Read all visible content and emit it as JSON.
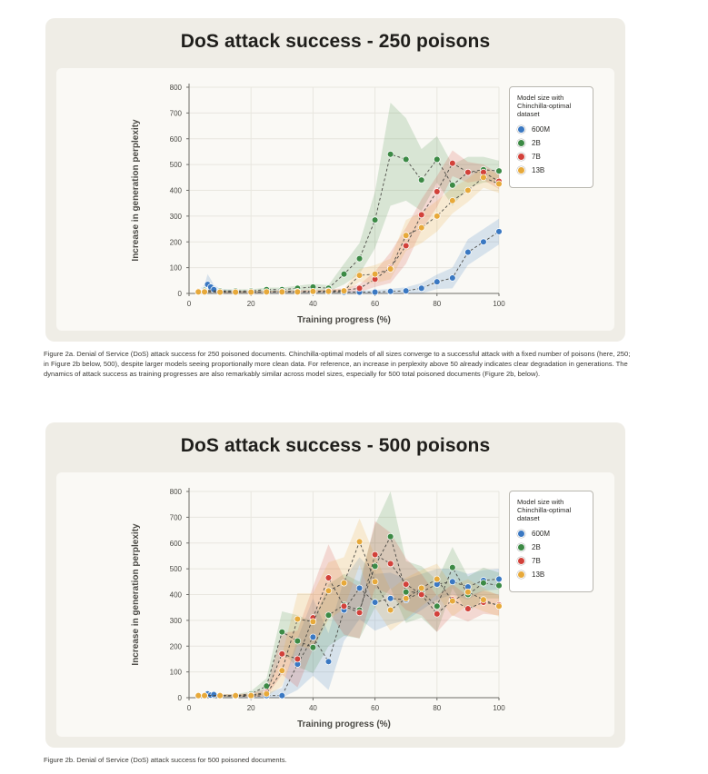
{
  "legend_title": "Model size with Chinchilla-optimal dataset",
  "series_meta": [
    {
      "name": "600M",
      "color": "#3a78c2"
    },
    {
      "name": "2B",
      "color": "#3c8a45"
    },
    {
      "name": "7B",
      "color": "#d2413a"
    },
    {
      "name": "13B",
      "color": "#e7a93a"
    }
  ],
  "captions": {
    "fig2a": "Figure 2a. Denial of Service (DoS) attack success for 250 poisoned documents. Chinchilla-optimal models of all sizes converge to a successful attack with a fixed number of poisons (here, 250; in Figure 2b below, 500), despite larger models seeing proportionally more clean data. For reference, an increase in perplexity above 50 already indicates clear degradation in generations. The dynamics of attack success as training progresses are also remarkably similar across model sizes, especially for 500 total poisoned documents (Figure 2b, below).",
    "fig2b": "Figure 2b. Denial of Service (DoS) attack success for 500 poisoned documents."
  },
  "chart_data": [
    {
      "type": "line",
      "title": "DoS attack success - 250 poisons",
      "xlabel": "Training progress (%)",
      "ylabel": "Increase in generation perplexity",
      "xlim": [
        0,
        100
      ],
      "ylim": [
        0,
        800
      ],
      "xticks": [
        0,
        20,
        40,
        60,
        80,
        100
      ],
      "yticks": [
        0,
        100,
        200,
        300,
        400,
        500,
        600,
        700,
        800
      ],
      "grid": true,
      "legend_position": "top-right",
      "series": [
        {
          "name": "600M",
          "x": [
            3,
            5,
            6,
            7,
            8,
            10,
            15,
            20,
            25,
            30,
            35,
            40,
            45,
            50,
            55,
            60,
            65,
            70,
            75,
            80,
            85,
            90,
            95,
            100
          ],
          "y": [
            5,
            15,
            35,
            25,
            15,
            8,
            5,
            5,
            5,
            5,
            5,
            5,
            5,
            5,
            5,
            5,
            8,
            10,
            20,
            45,
            60,
            160,
            200,
            240
          ],
          "band": [
            8,
            18,
            40,
            30,
            18,
            10,
            6,
            6,
            6,
            6,
            6,
            6,
            6,
            6,
            6,
            8,
            10,
            14,
            20,
            28,
            40,
            50,
            50,
            50
          ]
        },
        {
          "name": "2B",
          "x": [
            3,
            5,
            10,
            15,
            20,
            25,
            30,
            35,
            40,
            45,
            50,
            55,
            60,
            65,
            70,
            75,
            80,
            85,
            90,
            95,
            100
          ],
          "y": [
            10,
            12,
            10,
            10,
            10,
            15,
            15,
            20,
            25,
            20,
            75,
            135,
            285,
            540,
            520,
            440,
            520,
            420,
            470,
            480,
            475
          ],
          "band": [
            6,
            6,
            6,
            6,
            6,
            8,
            8,
            10,
            12,
            12,
            40,
            60,
            110,
            200,
            160,
            120,
            90,
            80,
            60,
            50,
            40
          ]
        },
        {
          "name": "7B",
          "x": [
            3,
            5,
            10,
            15,
            20,
            25,
            30,
            35,
            40,
            45,
            50,
            55,
            60,
            65,
            70,
            75,
            80,
            85,
            90,
            95,
            100
          ],
          "y": [
            8,
            8,
            6,
            6,
            6,
            6,
            8,
            8,
            8,
            10,
            12,
            20,
            55,
            100,
            185,
            305,
            395,
            505,
            470,
            470,
            435
          ],
          "band": [
            4,
            4,
            4,
            4,
            4,
            4,
            4,
            5,
            5,
            6,
            8,
            15,
            30,
            60,
            70,
            60,
            60,
            50,
            40,
            30,
            30
          ]
        },
        {
          "name": "13B",
          "x": [
            3,
            5,
            10,
            15,
            20,
            25,
            30,
            35,
            40,
            45,
            50,
            55,
            60,
            65,
            70,
            75,
            80,
            85,
            90,
            95,
            100
          ],
          "y": [
            6,
            6,
            5,
            5,
            5,
            6,
            6,
            6,
            8,
            8,
            10,
            70,
            75,
            95,
            225,
            255,
            300,
            360,
            400,
            450,
            425
          ],
          "band": [
            4,
            4,
            4,
            4,
            4,
            4,
            4,
            4,
            5,
            5,
            8,
            25,
            35,
            40,
            60,
            60,
            60,
            50,
            45,
            40,
            35
          ]
        }
      ]
    },
    {
      "type": "line",
      "title": "DoS attack success - 500 poisons",
      "xlabel": "Training progress (%)",
      "ylabel": "Increase in generation perplexity",
      "xlim": [
        0,
        100
      ],
      "ylim": [
        0,
        800
      ],
      "xticks": [
        0,
        20,
        40,
        60,
        80,
        100
      ],
      "yticks": [
        0,
        100,
        200,
        300,
        400,
        500,
        600,
        700,
        800
      ],
      "grid": true,
      "legend_position": "top-right",
      "series": [
        {
          "name": "600M",
          "x": [
            3,
            5,
            6,
            7,
            8,
            10,
            15,
            20,
            25,
            30,
            35,
            40,
            45,
            50,
            55,
            60,
            65,
            70,
            75,
            80,
            85,
            90,
            95,
            100
          ],
          "y": [
            8,
            10,
            15,
            10,
            12,
            8,
            5,
            5,
            8,
            8,
            130,
            235,
            140,
            340,
            425,
            370,
            385,
            380,
            410,
            440,
            450,
            430,
            455,
            460
          ],
          "band": [
            6,
            6,
            8,
            6,
            6,
            5,
            5,
            5,
            10,
            30,
            100,
            150,
            110,
            120,
            120,
            110,
            100,
            80,
            70,
            60,
            50,
            50,
            40,
            40
          ]
        },
        {
          "name": "2B",
          "x": [
            3,
            5,
            10,
            15,
            20,
            25,
            30,
            35,
            40,
            45,
            50,
            55,
            60,
            65,
            70,
            75,
            80,
            85,
            90,
            95,
            100
          ],
          "y": [
            8,
            8,
            8,
            8,
            15,
            45,
            255,
            220,
            195,
            320,
            360,
            340,
            510,
            625,
            410,
            410,
            355,
            505,
            400,
            445,
            435
          ],
          "band": [
            5,
            5,
            5,
            5,
            10,
            30,
            80,
            100,
            100,
            120,
            120,
            110,
            160,
            200,
            120,
            100,
            100,
            80,
            70,
            60,
            50
          ]
        },
        {
          "name": "7B",
          "x": [
            3,
            5,
            10,
            15,
            20,
            25,
            30,
            35,
            40,
            45,
            50,
            55,
            60,
            65,
            70,
            75,
            80,
            85,
            90,
            95,
            100
          ],
          "y": [
            8,
            8,
            8,
            8,
            10,
            20,
            170,
            150,
            310,
            465,
            355,
            330,
            555,
            520,
            440,
            400,
            325,
            380,
            345,
            370,
            360
          ],
          "band": [
            5,
            5,
            5,
            5,
            8,
            15,
            80,
            110,
            120,
            130,
            110,
            100,
            130,
            120,
            100,
            80,
            70,
            60,
            50,
            45,
            40
          ]
        },
        {
          "name": "13B",
          "x": [
            3,
            5,
            10,
            15,
            20,
            25,
            30,
            35,
            40,
            45,
            50,
            55,
            60,
            65,
            70,
            75,
            80,
            85,
            90,
            95,
            100
          ],
          "y": [
            8,
            8,
            8,
            8,
            8,
            15,
            105,
            305,
            295,
            415,
            445,
            605,
            450,
            340,
            385,
            425,
            460,
            375,
            410,
            380,
            355
          ],
          "band": [
            5,
            5,
            5,
            5,
            5,
            10,
            60,
            100,
            110,
            110,
            100,
            90,
            100,
            80,
            80,
            70,
            60,
            60,
            50,
            45,
            40
          ]
        }
      ]
    }
  ]
}
